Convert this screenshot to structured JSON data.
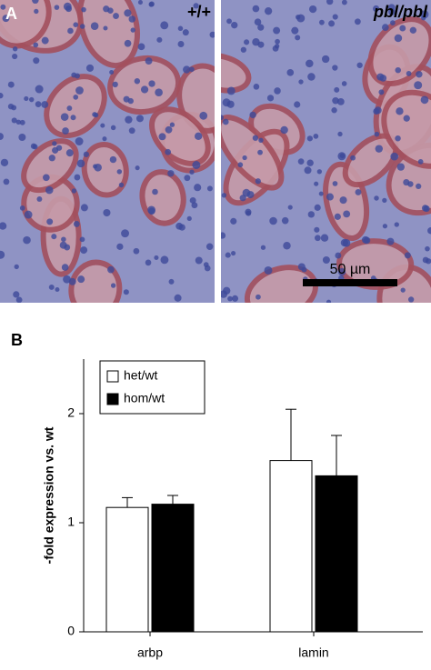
{
  "figure": {
    "panel_a_label": "A",
    "panel_b_label": "B",
    "images": [
      {
        "genotype": "+/+"
      },
      {
        "genotype": "pbl/pbl",
        "scale_bar": "50 µm"
      }
    ]
  },
  "chart_data": {
    "type": "bar",
    "ylabel": "-fold expression vs. wt",
    "categories": [
      "arbp",
      "lamin"
    ],
    "series": [
      {
        "name": "het/wt",
        "color": "#ffffff",
        "values": [
          1.14,
          1.57
        ],
        "errors": [
          0.09,
          0.47
        ]
      },
      {
        "name": "hom/wt",
        "color": "#000000",
        "values": [
          1.17,
          1.43
        ],
        "errors": [
          0.08,
          0.37
        ]
      }
    ],
    "ylim": [
      0,
      2.5
    ],
    "yticks": [
      0,
      1,
      2
    ],
    "legend": "upper left"
  }
}
